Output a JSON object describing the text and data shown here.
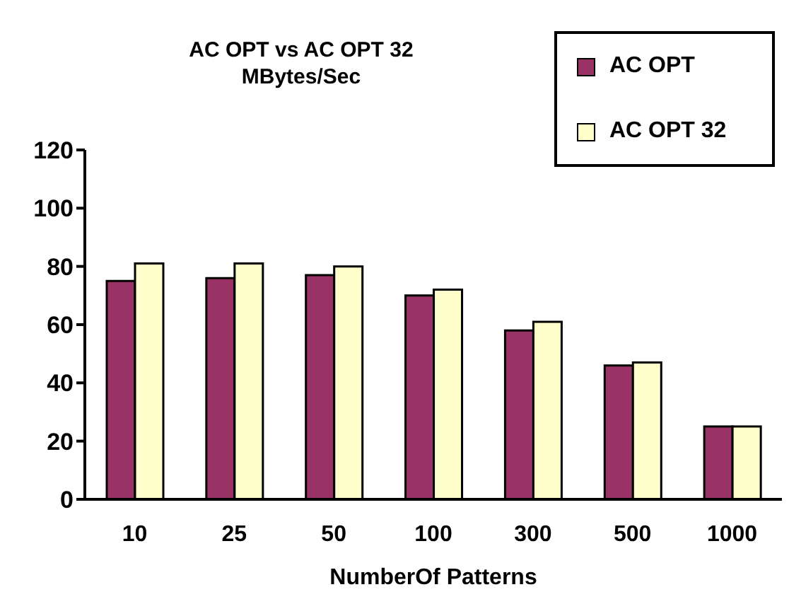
{
  "chart_data": {
    "type": "bar",
    "title": "AC OPT vs AC OPT 32\nMBytes/Sec",
    "xlabel": "NumberOf Patterns",
    "categories": [
      "10",
      "25",
      "50",
      "100",
      "300",
      "500",
      "1000"
    ],
    "series": [
      {
        "name": "AC OPT",
        "color": "#993366",
        "values": [
          75,
          76,
          77,
          70,
          58,
          46,
          25
        ]
      },
      {
        "name": "AC OPT 32",
        "color": "#ffffcc",
        "values": [
          81,
          81,
          80,
          72,
          61,
          47,
          25
        ]
      }
    ],
    "ylim": [
      0,
      120
    ],
    "yticks": [
      0,
      20,
      40,
      60,
      80,
      100,
      120
    ],
    "grid": false,
    "legend": "top right"
  }
}
